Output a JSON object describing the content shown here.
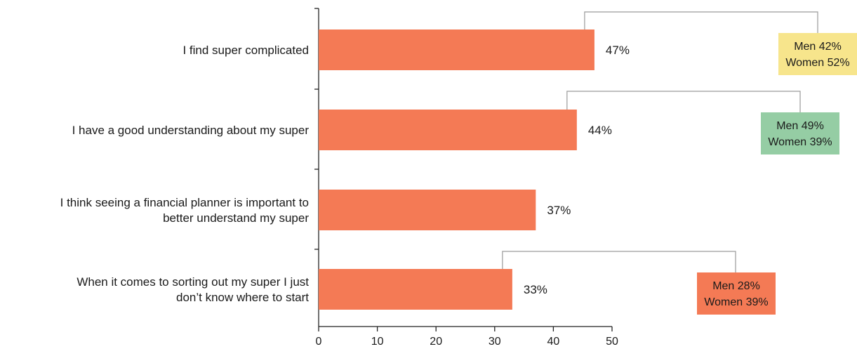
{
  "chart_data": {
    "type": "bar",
    "orientation": "horizontal",
    "categories": [
      [
        "I find super complicated"
      ],
      [
        "I have a good understanding about my super"
      ],
      [
        "I think seeing a financial planner is important to",
        "better understand my super"
      ],
      [
        "When it comes to sorting out my super I just",
        "don’t know where to start"
      ]
    ],
    "values": [
      47,
      44,
      37,
      33
    ],
    "value_labels": [
      "47%",
      "44%",
      "37%",
      "33%"
    ],
    "xlim": [
      0,
      50
    ],
    "xticks": [
      0,
      10,
      20,
      30,
      40,
      50
    ],
    "grid": false,
    "bar_color": "#f47a55",
    "gender_breakdown": [
      {
        "category_index": 0,
        "men": "Men 42%",
        "women": "Women 52%",
        "color": "#f7e58c"
      },
      {
        "category_index": 1,
        "men": "Men 49%",
        "women": "Women 39%",
        "color": "#95cda4"
      },
      {
        "category_index": 3,
        "men": "Men 28%",
        "women": "Women 39%",
        "color": "#f47a55"
      }
    ]
  }
}
